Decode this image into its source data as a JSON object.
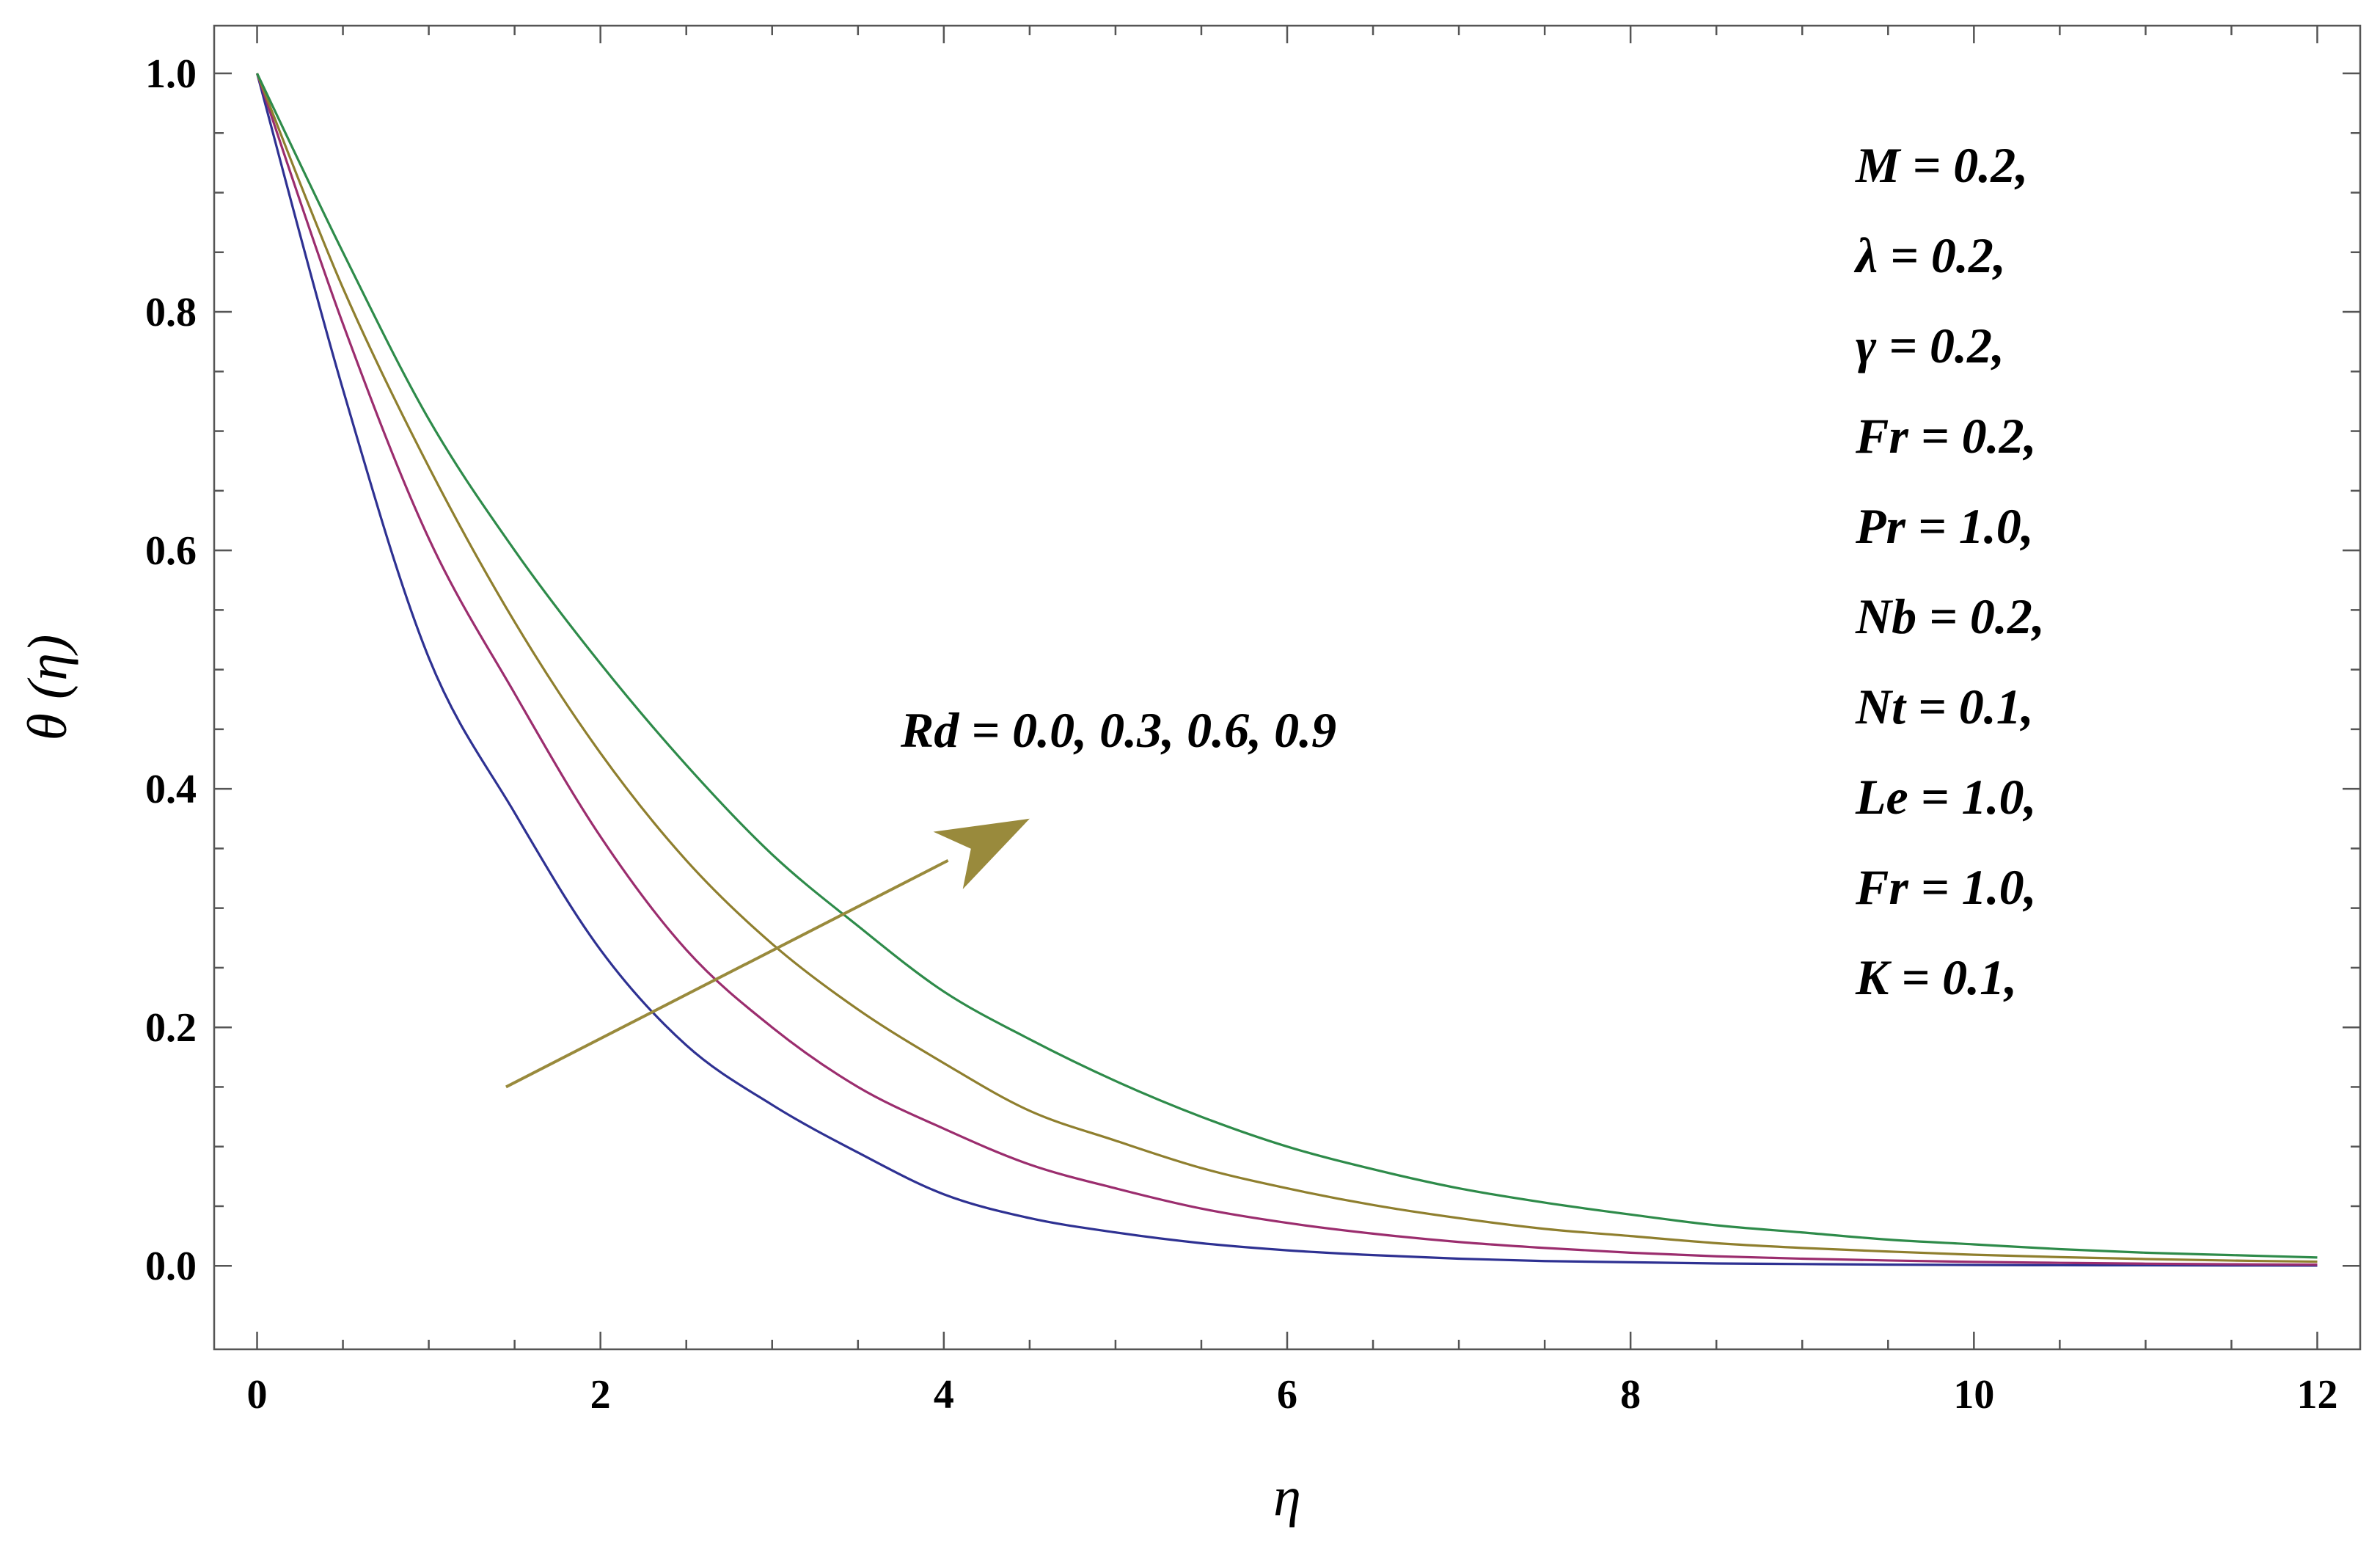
{
  "chart_data": {
    "type": "line",
    "title": "",
    "xlabel": "η",
    "ylabel": "θ (η)",
    "xlim": [
      -0.25,
      12.25
    ],
    "ylim": [
      -0.07,
      1.04
    ],
    "xticks": [
      0,
      2,
      4,
      6,
      8,
      10,
      12
    ],
    "xtick_labels": [
      "0",
      "2",
      "4",
      "6",
      "8",
      "10",
      "12"
    ],
    "yticks": [
      0.0,
      0.2,
      0.4,
      0.6,
      0.8,
      1.0
    ],
    "ytick_labels": [
      "0.0",
      "0.2",
      "0.4",
      "0.6",
      "0.8",
      "1.0"
    ],
    "grid": false,
    "x": [
      0,
      0.5,
      1,
      1.5,
      2,
      2.5,
      3,
      3.5,
      4,
      4.5,
      5,
      5.5,
      6,
      6.5,
      7,
      7.5,
      8,
      8.5,
      9,
      9.5,
      10,
      10.5,
      11,
      11.5,
      12
    ],
    "series": [
      {
        "color": "#2e3192",
        "values": [
          1.0,
          0.735,
          0.51,
          0.38,
          0.265,
          0.185,
          0.135,
          0.095,
          0.06,
          0.04,
          0.028,
          0.019,
          0.013,
          0.009,
          0.006,
          0.004,
          0.003,
          0.002,
          0.0015,
          0.001,
          0.0007,
          0.0005,
          0.0004,
          0.0003,
          0.0002
        ]
      },
      {
        "color": "#9b2d6e",
        "values": [
          1.0,
          0.79,
          0.61,
          0.48,
          0.36,
          0.265,
          0.2,
          0.15,
          0.115,
          0.085,
          0.065,
          0.048,
          0.036,
          0.027,
          0.02,
          0.015,
          0.011,
          0.008,
          0.006,
          0.0045,
          0.0033,
          0.0025,
          0.0018,
          0.0013,
          0.001
        ]
      },
      {
        "color": "#8f7f2e",
        "values": [
          1.0,
          0.82,
          0.67,
          0.54,
          0.43,
          0.34,
          0.27,
          0.215,
          0.17,
          0.13,
          0.105,
          0.082,
          0.065,
          0.051,
          0.04,
          0.031,
          0.025,
          0.019,
          0.015,
          0.012,
          0.0093,
          0.0073,
          0.0057,
          0.0044,
          0.0035
        ]
      },
      {
        "color": "#2e8b4a",
        "values": [
          1.0,
          0.85,
          0.71,
          0.6,
          0.505,
          0.42,
          0.345,
          0.285,
          0.23,
          0.19,
          0.155,
          0.125,
          0.1,
          0.081,
          0.065,
          0.053,
          0.043,
          0.034,
          0.028,
          0.022,
          0.018,
          0.014,
          0.011,
          0.009,
          0.007
        ]
      }
    ],
    "annotations": {
      "rd_label": "Rd  =  0.0,  0.3,  0.6,  0.9",
      "arrow_color": "#998a3c",
      "arrow_from": [
        1.45,
        0.15
      ],
      "arrow_to": [
        4.5,
        0.375
      ],
      "params": [
        "M  =  0.2,",
        "λ = 0.2,",
        "γ  = 0.2,",
        "Fr = 0.2,",
        "Pr = 1.0,",
        "Nb = 0.2,",
        "Nt = 0.1,",
        "Le = 1.0,",
        "Fr = 1.0,",
        "K = 0.1,"
      ]
    }
  }
}
